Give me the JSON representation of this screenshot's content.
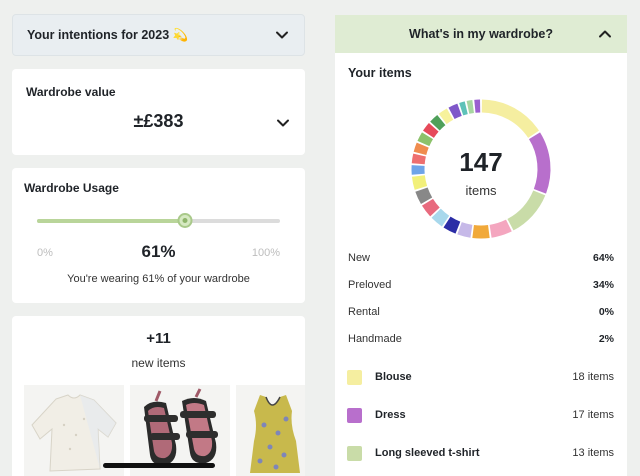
{
  "intentions": {
    "title": "Your intentions for 2023 💫"
  },
  "wardrobe_value": {
    "title": "Wardrobe value",
    "value": "±£383"
  },
  "wardrobe_usage": {
    "title": "Wardrobe Usage",
    "min": "0%",
    "max": "100%",
    "percent_label": "61%",
    "percent_value": 61,
    "caption": "You're wearing 61% of your wardrobe"
  },
  "new_items": {
    "count": "+11",
    "label": "new items"
  },
  "wardrobe_panel": {
    "title": "What's in my wardrobe?",
    "your_items": "Your items",
    "total": "147",
    "total_label": "items",
    "stats": [
      {
        "label": "New",
        "value": "64%"
      },
      {
        "label": "Preloved",
        "value": "34%"
      },
      {
        "label": "Rental",
        "value": "0%"
      },
      {
        "label": "Handmade",
        "value": "2%"
      }
    ],
    "categories": [
      {
        "name": "Blouse",
        "count": "18 items",
        "color": "#f5eea0"
      },
      {
        "name": "Dress",
        "count": "17 items",
        "color": "#b86fcc"
      },
      {
        "name": "Long sleeved t-shirt",
        "count": "13 items",
        "color": "#c9dca8"
      }
    ],
    "donut_segments": [
      {
        "color": "#f5eea0",
        "value": 18
      },
      {
        "color": "#b86fcc",
        "value": 17
      },
      {
        "color": "#c9dca8",
        "value": 13
      },
      {
        "color": "#f4a6bf",
        "value": 6
      },
      {
        "color": "#f1a93a",
        "value": 5
      },
      {
        "color": "#c6b9e8",
        "value": 4
      },
      {
        "color": "#2b2da6",
        "value": 4
      },
      {
        "color": "#a8d8ec",
        "value": 4
      },
      {
        "color": "#e86a7e",
        "value": 4
      },
      {
        "color": "#888888",
        "value": 4
      },
      {
        "color": "#f2f07a",
        "value": 4
      },
      {
        "color": "#6fa4e8",
        "value": 3
      },
      {
        "color": "#ee6f6f",
        "value": 3
      },
      {
        "color": "#f08c4e",
        "value": 3
      },
      {
        "color": "#8cc26b",
        "value": 3
      },
      {
        "color": "#e64a5a",
        "value": 3
      },
      {
        "color": "#4fa05a",
        "value": 3
      },
      {
        "color": "#f7f29c",
        "value": 3
      },
      {
        "color": "#7f58c9",
        "value": 3
      },
      {
        "color": "#5ec2b8",
        "value": 2
      },
      {
        "color": "#a7d6a0",
        "value": 2
      },
      {
        "color": "#9a5fd0",
        "value": 2
      }
    ]
  }
}
